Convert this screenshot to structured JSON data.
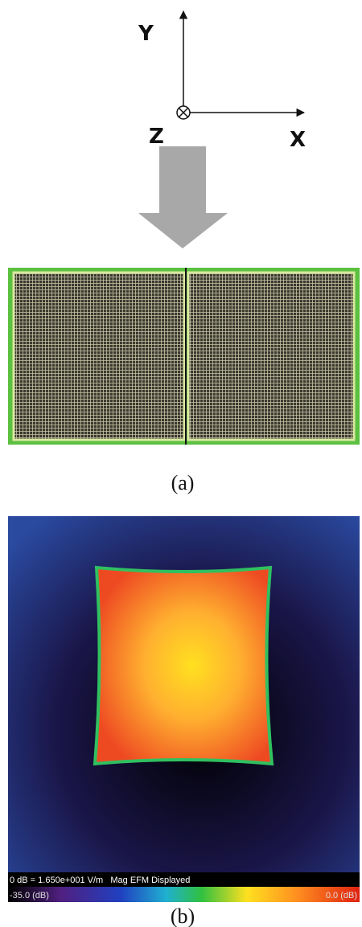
{
  "figure_a": {
    "axis_y": "Y",
    "axis_z": "Z",
    "axis_x": "X",
    "caption": "(a)"
  },
  "figure_b": {
    "info": "0 dB = 1.650e+001 V/m   Mag EFM Displayed",
    "scale_min": "-35.0 (dB)",
    "scale_max": "0.0 (dB)",
    "caption": "(b)"
  }
}
